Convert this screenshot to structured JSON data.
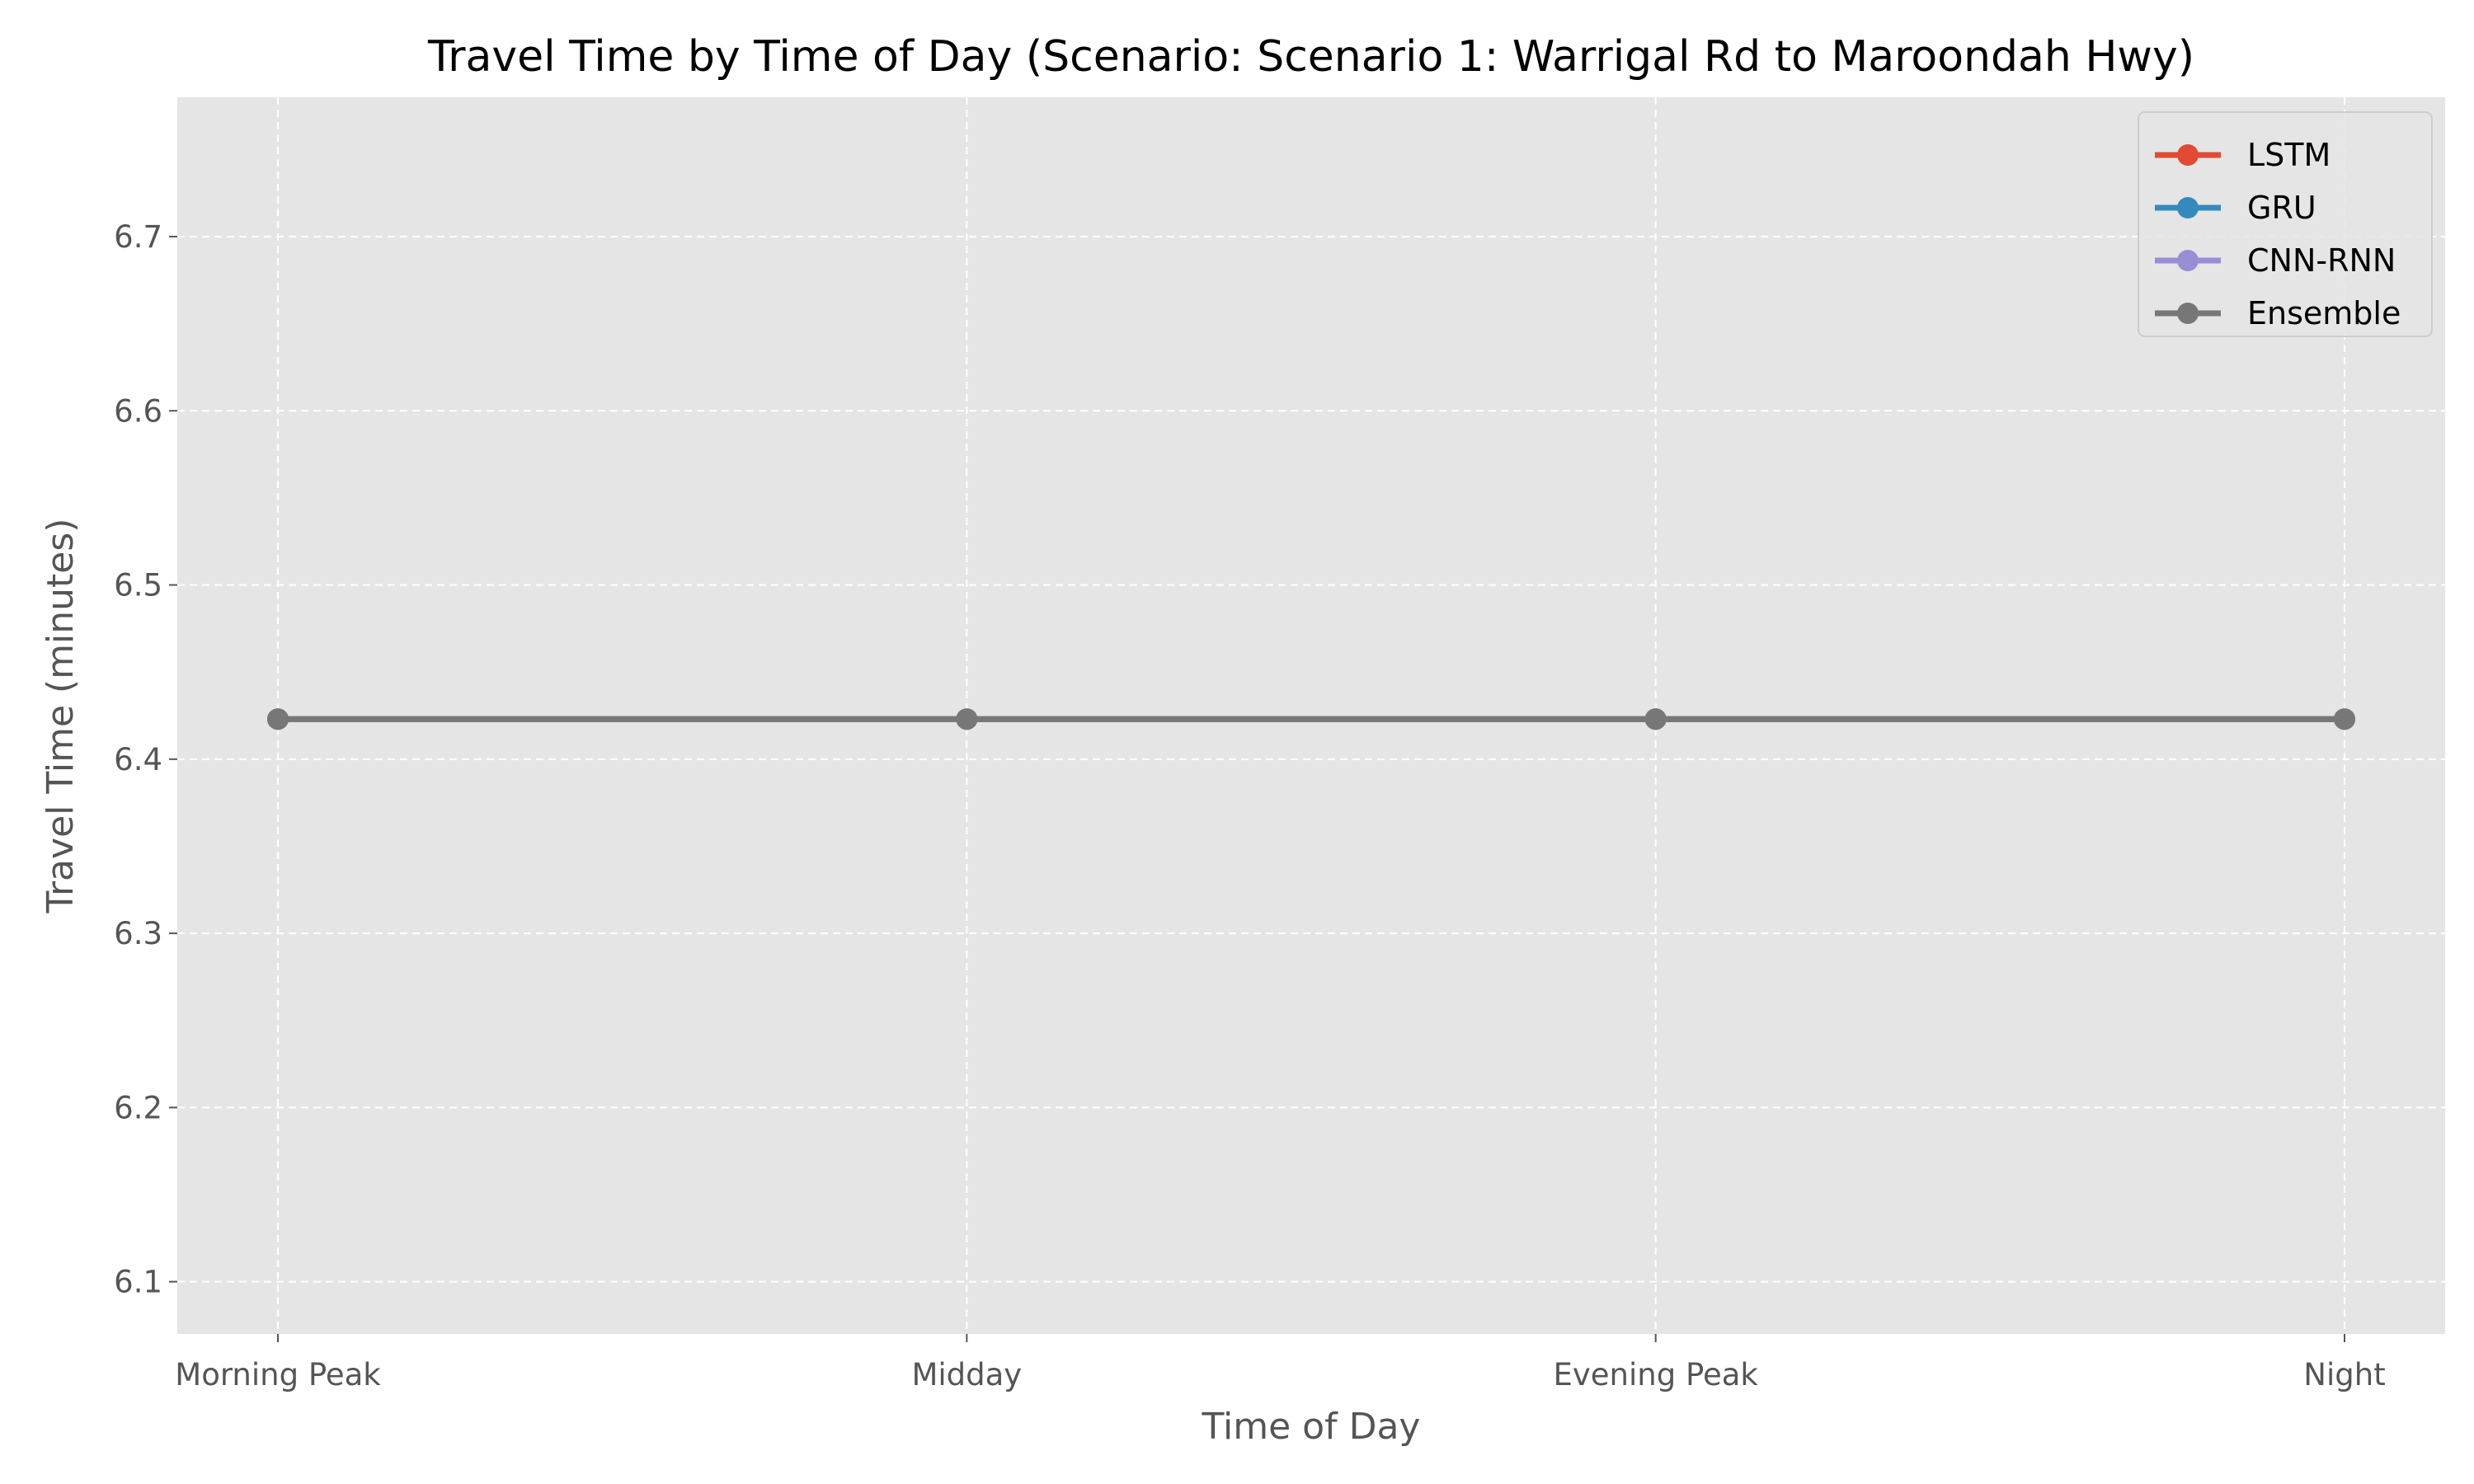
{
  "chart_data": {
    "type": "line",
    "title": "Travel Time by Time of Day (Scenario: Scenario 1: Warrigal Rd to Maroondah Hwy)",
    "xlabel": "Time of Day",
    "ylabel": "Travel Time (minutes)",
    "categories": [
      "Morning Peak",
      "Midday",
      "Evening Peak",
      "Night"
    ],
    "ylim": [
      6.07,
      6.78
    ],
    "yticks": [
      6.1,
      6.2,
      6.3,
      6.4,
      6.5,
      6.6,
      6.7
    ],
    "ytick_labels": [
      "6.1",
      "6.2",
      "6.3",
      "6.4",
      "6.5",
      "6.6",
      "6.7"
    ],
    "grid": true,
    "legend_position": "top-right",
    "series": [
      {
        "name": "LSTM",
        "color": "#e24a33",
        "values": [
          6.423,
          6.423,
          6.423,
          6.423
        ]
      },
      {
        "name": "GRU",
        "color": "#348abd",
        "values": [
          6.423,
          6.423,
          6.423,
          6.423
        ]
      },
      {
        "name": "CNN-RNN",
        "color": "#988ed5",
        "values": [
          6.423,
          6.423,
          6.423,
          6.423
        ]
      },
      {
        "name": "Ensemble",
        "color": "#777777",
        "values": [
          6.423,
          6.423,
          6.423,
          6.423
        ]
      }
    ]
  }
}
